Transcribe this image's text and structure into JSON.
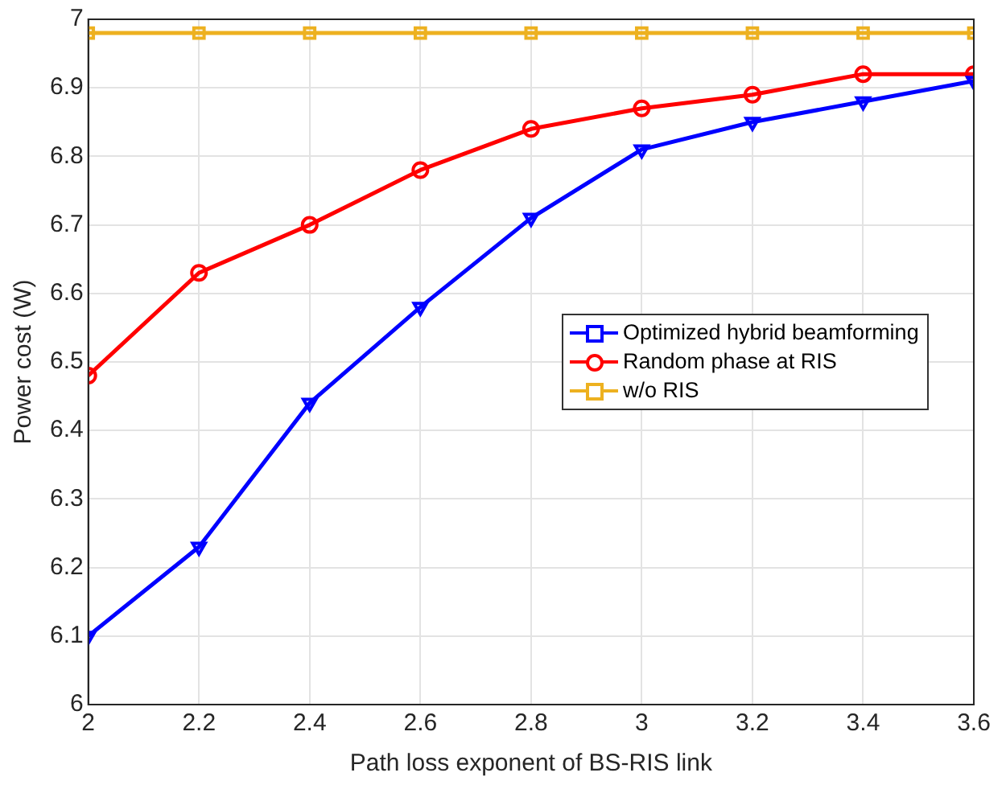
{
  "chart_data": {
    "type": "line",
    "xlabel": "Path loss exponent of BS-RIS link",
    "ylabel": "Power cost (W)",
    "x": [
      2,
      2.2,
      2.4,
      2.6,
      2.8,
      3,
      3.2,
      3.4,
      3.6
    ],
    "series": [
      {
        "name": "Optimized hybrid beamforming",
        "color": "#0000ff",
        "marker": "triangle",
        "values": [
          6.1,
          6.23,
          6.44,
          6.58,
          6.71,
          6.81,
          6.85,
          6.88,
          6.91
        ]
      },
      {
        "name": "Random phase at RIS",
        "color": "#ff0000",
        "marker": "circle",
        "values": [
          6.48,
          6.63,
          6.7,
          6.78,
          6.84,
          6.87,
          6.89,
          6.92,
          6.92
        ]
      },
      {
        "name": "w/o RIS",
        "color": "#edb120",
        "marker": "square",
        "values": [
          6.98,
          6.98,
          6.98,
          6.98,
          6.98,
          6.98,
          6.98,
          6.98,
          6.98
        ]
      }
    ],
    "xlim": [
      2,
      3.6
    ],
    "xticks": [
      2,
      2.2,
      2.4,
      2.6,
      2.8,
      3,
      3.2,
      3.4,
      3.6
    ],
    "ylim": [
      6,
      7
    ],
    "yticks": [
      6,
      6.1,
      6.2,
      6.3,
      6.4,
      6.5,
      6.6,
      6.7,
      6.8,
      6.9,
      7
    ],
    "grid": true,
    "legend": "right",
    "line_style": "solid"
  }
}
